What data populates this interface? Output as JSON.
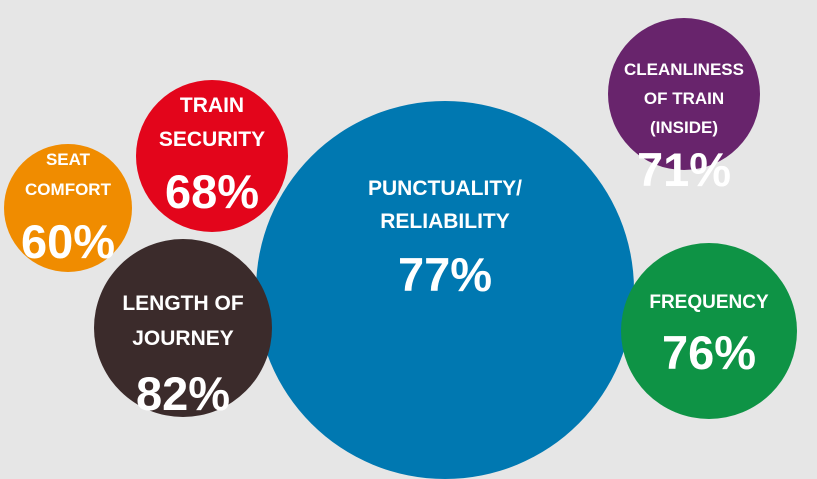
{
  "chart_data": {
    "type": "bubble",
    "title": "",
    "series": [],
    "categories": [
      "PUNCTUALITY/ RELIABILITY",
      "LENGTH OF JOURNEY",
      "SEAT COMFORT",
      "TRAIN SECURITY",
      "CLEANLINESS OF TRAIN (INSIDE)",
      "FREQUENCY"
    ],
    "values": [
      77,
      82,
      60,
      68,
      71,
      76
    ],
    "bubbles": [
      {
        "label_lines": [
          "PUNCTUALITY/",
          "RELIABILITY"
        ],
        "value": 77,
        "value_text": "77%",
        "color": "#0078b1"
      },
      {
        "label_lines": [
          "LENGTH OF",
          "JOURNEY"
        ],
        "value": 82,
        "value_text": "82%",
        "color": "#3b2b2b"
      },
      {
        "label_lines": [
          "SEAT",
          "COMFORT"
        ],
        "value": 60,
        "value_text": "60%",
        "color": "#f08c00"
      },
      {
        "label_lines": [
          "TRAIN",
          "SECURITY"
        ],
        "value": 68,
        "value_text": "68%",
        "color": "#e3051b"
      },
      {
        "label_lines": [
          "CLEANLINESS",
          "OF TRAIN",
          "(INSIDE)"
        ],
        "value": 71,
        "value_text": "71%",
        "color": "#68246c"
      },
      {
        "label_lines": [
          "FREQUENCY"
        ],
        "value": 76,
        "value_text": "76%",
        "color": "#0e9345"
      }
    ],
    "legend": "none",
    "grid": false
  }
}
